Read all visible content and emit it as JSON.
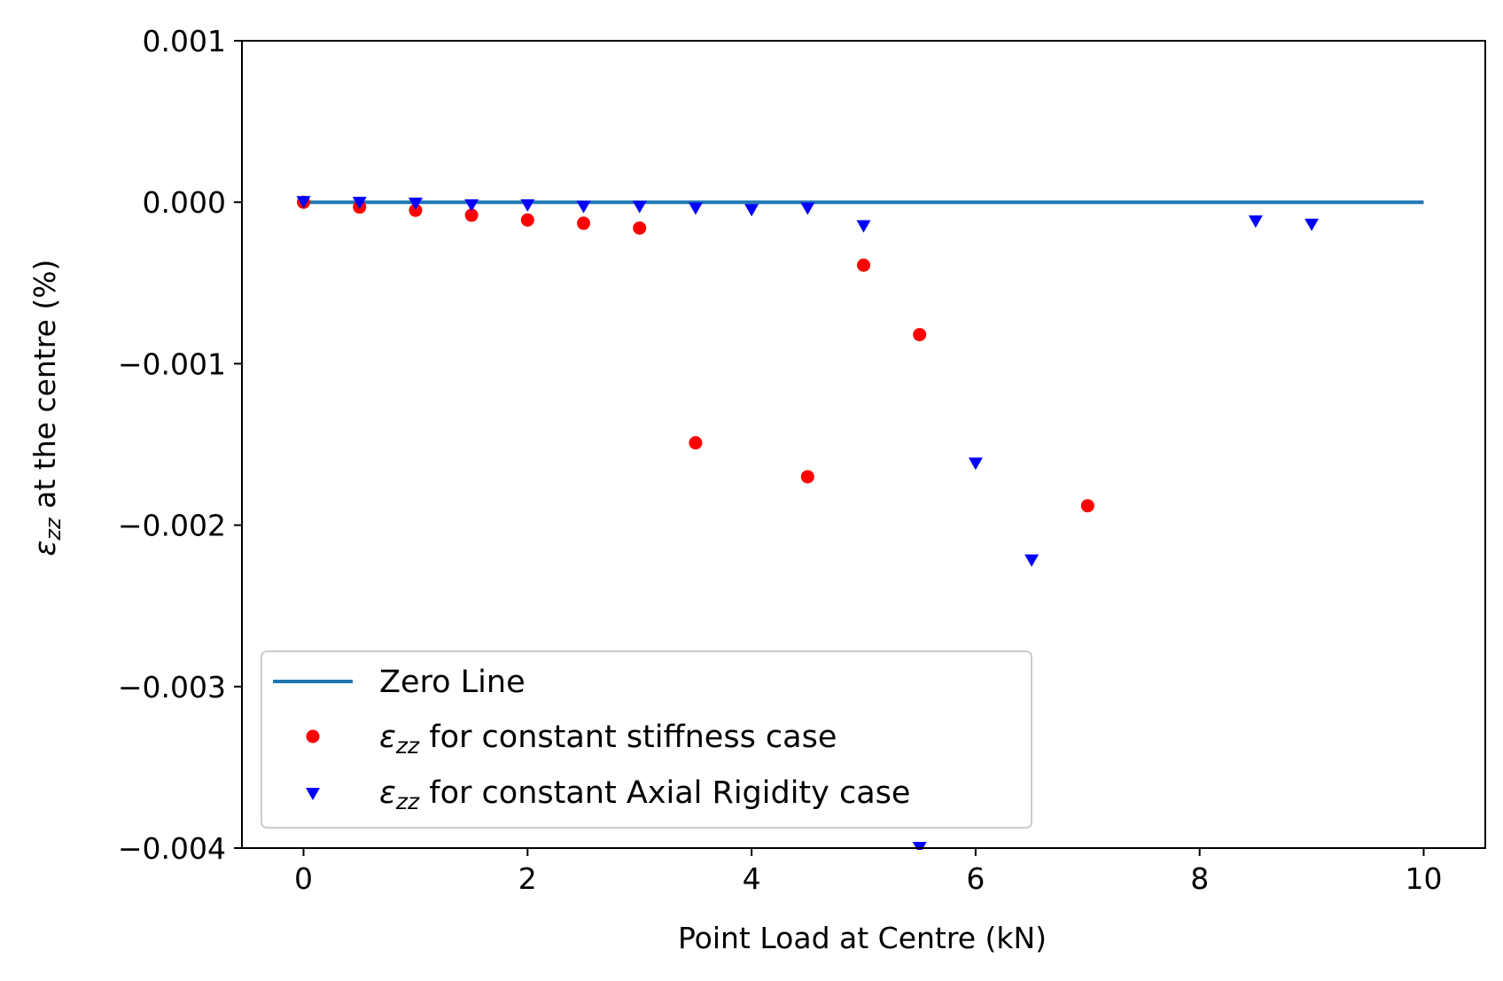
{
  "chart_data": {
    "type": "scatter",
    "xlabel": "Point Load at Centre (kN)",
    "ylabel_symbol": "ε",
    "ylabel_subscript": "zz",
    "ylabel_rest": " at the centre (%)",
    "xlim": [
      -0.55,
      10.55
    ],
    "ylim": [
      -0.004,
      0.001
    ],
    "xticks": [
      0,
      2,
      4,
      6,
      8,
      10
    ],
    "xtick_labels": [
      "0",
      "2",
      "4",
      "6",
      "8",
      "10"
    ],
    "yticks": [
      0.001,
      0.0,
      -0.001,
      -0.002,
      -0.003,
      -0.004
    ],
    "ytick_labels": [
      "0.001",
      "0.000",
      "−0.001",
      "−0.002",
      "−0.003",
      "−0.004"
    ],
    "legend_position": "lower-left",
    "series": [
      {
        "name": "Zero Line",
        "kind": "line",
        "color": "#1f77b4",
        "x": [
          0,
          10
        ],
        "y": [
          0,
          0
        ]
      },
      {
        "name_symbol": "ε",
        "name_subscript": "zz",
        "name_rest": " for constant stiffness case",
        "kind": "scatter",
        "marker": "circle",
        "color": "#ff0000",
        "x": [
          0,
          0.5,
          1,
          1.5,
          2,
          2.5,
          3,
          3.5,
          4.5,
          5,
          5.5,
          7
        ],
        "y": [
          0.0,
          -3e-05,
          -5e-05,
          -8e-05,
          -0.00011,
          -0.00013,
          -0.00016,
          -0.00149,
          -0.0017,
          -0.00039,
          -0.00082,
          -0.00188
        ]
      },
      {
        "name_symbol": "ε",
        "name_subscript": "zz",
        "name_rest": " for constant Axial Rigidity case",
        "kind": "scatter",
        "marker": "triangle-down",
        "color": "#0000ff",
        "x": [
          0,
          0.5,
          1,
          1.5,
          2,
          2.5,
          3,
          3.5,
          4,
          4.5,
          5,
          5.5,
          6,
          6.5,
          8.5,
          9
        ],
        "y": [
          0.0,
          -5e-06,
          -1e-05,
          -2e-05,
          -2e-05,
          -3e-05,
          -3e-05,
          -4e-05,
          -5e-05,
          -4e-05,
          -0.00015,
          -0.004,
          -0.00162,
          -0.00222,
          -0.00012,
          -0.00014
        ]
      }
    ]
  }
}
